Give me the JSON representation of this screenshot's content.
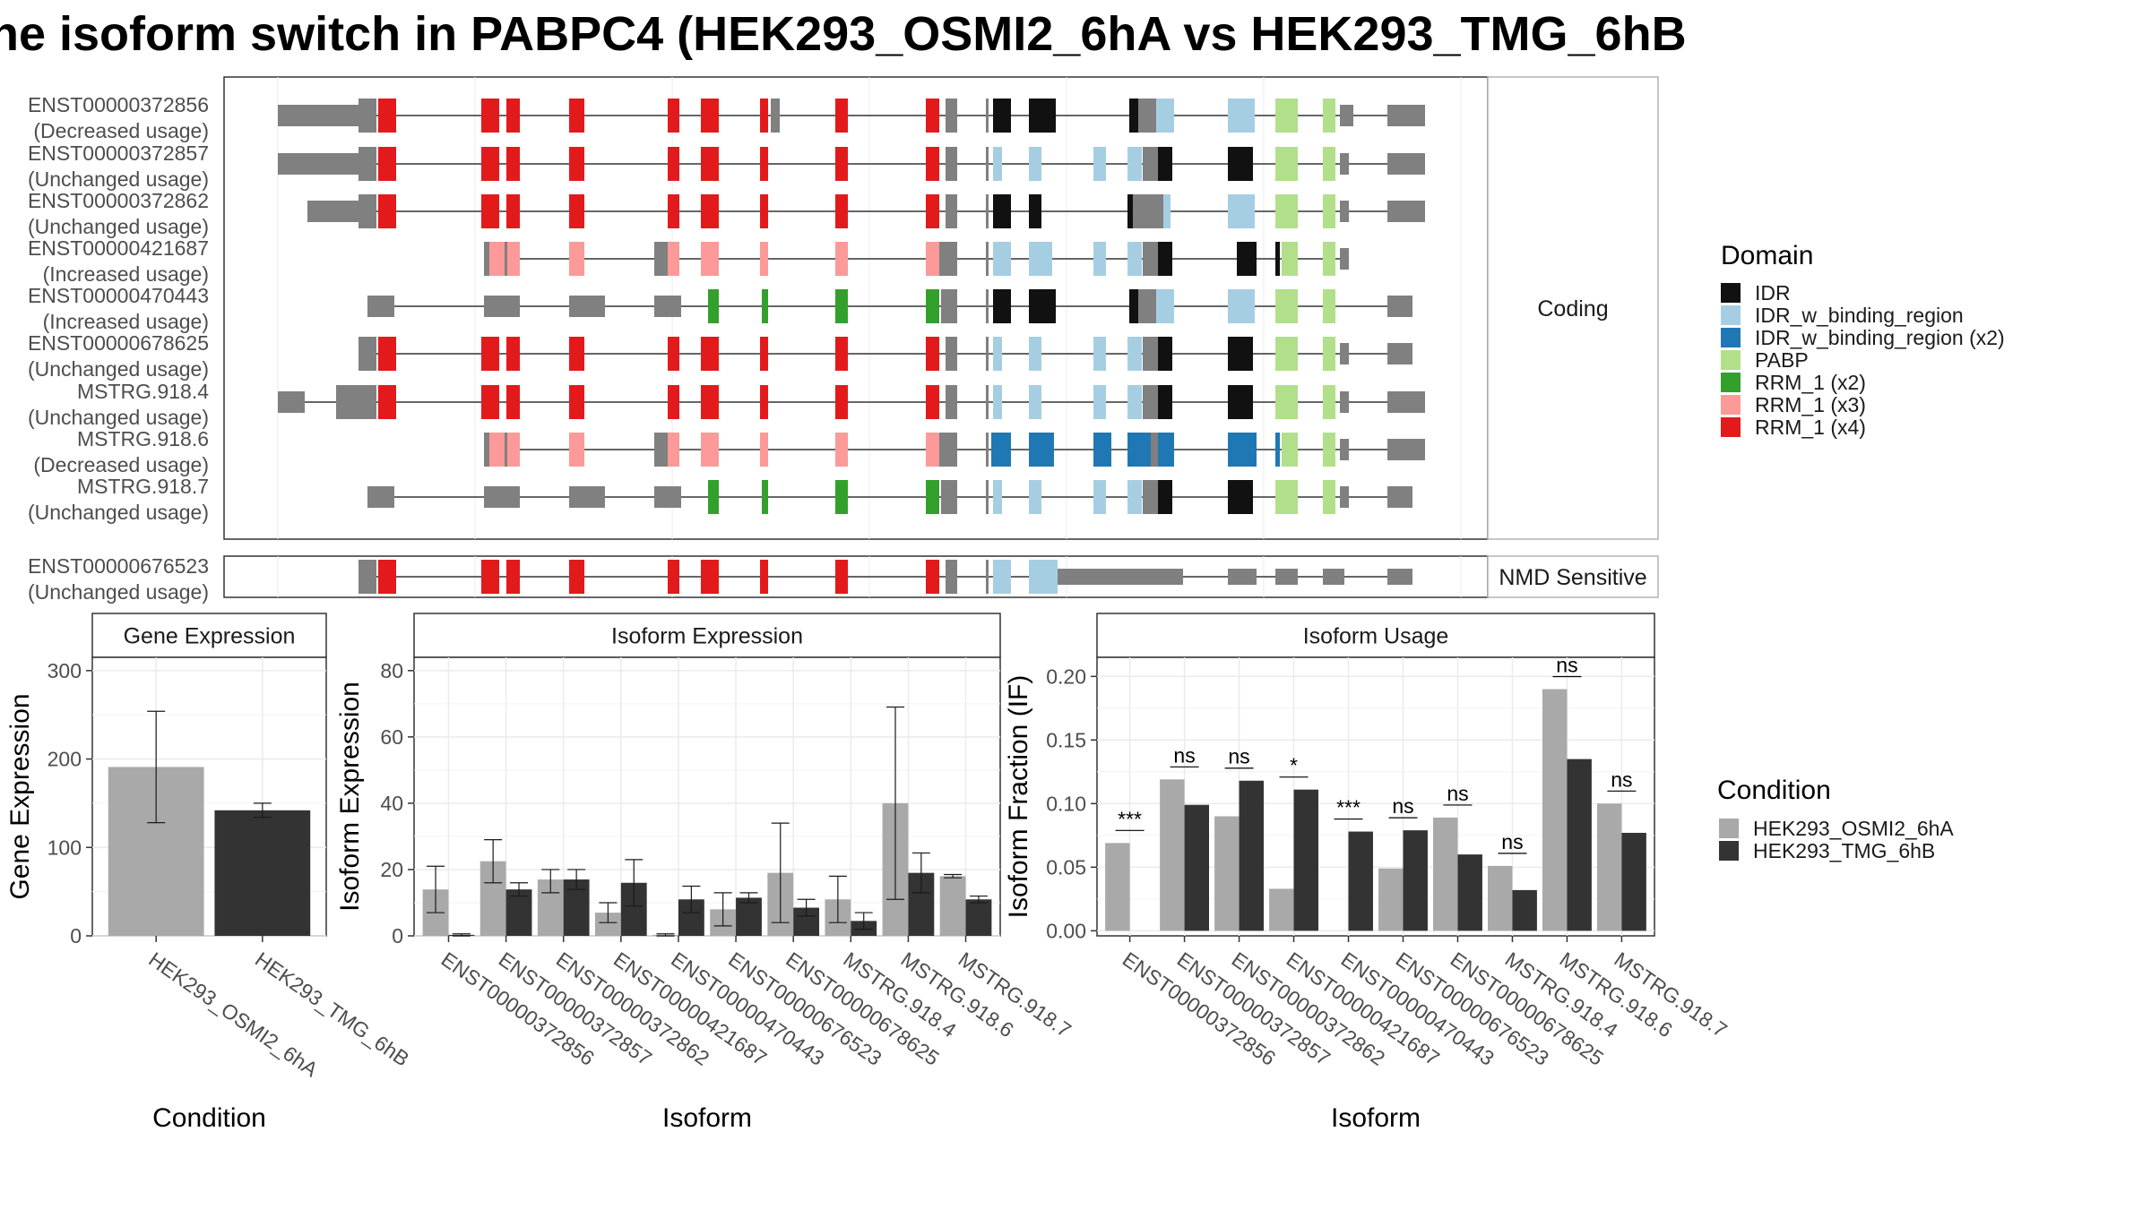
{
  "title": "he isoform switch in PABPC4 (HEK293_OSMI2_6hA vs HEK293_TMG_6hB",
  "colors": {
    "IDR": "#111111",
    "IDR_w_binding_region": "#a6cee3",
    "IDR_w_binding_region (x2)": "#1f78b4",
    "PABP": "#b2df8a",
    "RRM_1 (x2)": "#33a02c",
    "RRM_1 (x3)": "#fb9a99",
    "RRM_1 (x4)": "#e31a1c",
    "exon": "#808080",
    "condA": "#a9a9a9",
    "condB": "#333333"
  },
  "structure": {
    "coding_strip": "Coding",
    "nmd_strip": "NMD Sensitive",
    "coding_isoforms": [
      {
        "id": "ENST00000372856",
        "usage": "(Decreased usage)",
        "domains": [
          "RRM_1 (x4)",
          "IDR",
          "IDR_w_binding_region",
          "PABP"
        ]
      },
      {
        "id": "ENST00000372857",
        "usage": "(Unchanged usage)",
        "domains": [
          "RRM_1 (x4)",
          "IDR_w_binding_region",
          "IDR",
          "PABP"
        ]
      },
      {
        "id": "ENST00000372862",
        "usage": "(Unchanged usage)",
        "domains": [
          "RRM_1 (x4)",
          "IDR",
          "IDR_w_binding_region",
          "PABP"
        ]
      },
      {
        "id": "ENST00000421687",
        "usage": "(Increased usage)",
        "domains": [
          "RRM_1 (x3)",
          "IDR_w_binding_region",
          "IDR",
          "PABP"
        ]
      },
      {
        "id": "ENST00000470443",
        "usage": "(Increased usage)",
        "domains": [
          "RRM_1 (x2)",
          "IDR",
          "IDR_w_binding_region",
          "PABP"
        ]
      },
      {
        "id": "ENST00000678625",
        "usage": "(Unchanged usage)",
        "domains": [
          "RRM_1 (x4)",
          "IDR_w_binding_region",
          "IDR",
          "PABP"
        ]
      },
      {
        "id": "MSTRG.918.4",
        "usage": "(Unchanged usage)",
        "domains": [
          "RRM_1 (x4)",
          "IDR_w_binding_region",
          "IDR",
          "PABP"
        ]
      },
      {
        "id": "MSTRG.918.6",
        "usage": "(Decreased usage)",
        "domains": [
          "RRM_1 (x3)",
          "IDR_w_binding_region (x2)",
          "PABP"
        ]
      },
      {
        "id": "MSTRG.918.7",
        "usage": "(Unchanged usage)",
        "domains": [
          "RRM_1 (x2)",
          "IDR_w_binding_region",
          "IDR",
          "PABP"
        ]
      }
    ],
    "nmd_isoforms": [
      {
        "id": "ENST00000676523",
        "usage": "(Unchanged usage)",
        "domains": [
          "RRM_1 (x4)",
          "IDR_w_binding_region"
        ]
      }
    ]
  },
  "domain_legend": {
    "title": "Domain",
    "items": [
      {
        "label": "IDR",
        "color": "#111111"
      },
      {
        "label": "IDR_w_binding_region",
        "color": "#a6cee3"
      },
      {
        "label": "IDR_w_binding_region (x2)",
        "color": "#1f78b4"
      },
      {
        "label": "PABP",
        "color": "#b2df8a"
      },
      {
        "label": "RRM_1 (x2)",
        "color": "#33a02c"
      },
      {
        "label": "RRM_1 (x3)",
        "color": "#fb9a99"
      },
      {
        "label": "RRM_1 (x4)",
        "color": "#e31a1c"
      }
    ]
  },
  "condition_legend": {
    "title": "Condition",
    "items": [
      {
        "label": "HEK293_OSMI2_6hA",
        "color": "#a9a9a9"
      },
      {
        "label": "HEK293_TMG_6hB",
        "color": "#333333"
      }
    ]
  },
  "chart_data": [
    {
      "type": "bar",
      "title": "Gene Expression",
      "xlabel": "Condition",
      "ylabel": "Gene Expression",
      "categories": [
        "HEK293_OSMI2_6hA",
        "HEK293_TMG_6hB"
      ],
      "values": [
        191,
        142
      ],
      "error_low": [
        128,
        134
      ],
      "error_high": [
        254,
        150
      ],
      "ylim": [
        0,
        315
      ],
      "yticks": [
        0,
        100,
        200,
        300
      ]
    },
    {
      "type": "bar",
      "title": "Isoform Expression",
      "xlabel": "Isoform",
      "ylabel": "Isoform Expression",
      "categories": [
        "ENST00000372856",
        "ENST00000372857",
        "ENST00000372862",
        "ENST00000421687",
        "ENST00000470443",
        "ENST00000676523",
        "ENST00000678625",
        "MSTRG.918.4",
        "MSTRG.918.6",
        "MSTRG.918.7"
      ],
      "series": [
        {
          "name": "HEK293_OSMI2_6hA",
          "values": [
            14,
            22.5,
            17,
            7,
            0.3,
            8,
            19,
            11,
            40,
            18
          ],
          "error_low": [
            7,
            16,
            13,
            4,
            0,
            3,
            4,
            4,
            11,
            17.5
          ],
          "error_high": [
            21,
            29,
            20,
            10,
            0.6,
            13,
            34,
            18,
            69,
            18.5
          ]
        },
        {
          "name": "HEK293_TMG_6hB",
          "values": [
            0.3,
            14,
            17,
            16,
            11,
            11.5,
            8.5,
            4.5,
            19,
            11
          ],
          "error_low": [
            0,
            12,
            14,
            9,
            7,
            10,
            6,
            2,
            13,
            10
          ],
          "error_high": [
            0.6,
            16,
            20,
            23,
            15,
            13,
            11,
            7,
            25,
            12
          ]
        }
      ],
      "ylim": [
        0,
        84
      ],
      "yticks": [
        0,
        20,
        40,
        60,
        80
      ]
    },
    {
      "type": "bar",
      "title": "Isoform Usage",
      "xlabel": "Isoform",
      "ylabel": "Isoform Fraction (IF)",
      "categories": [
        "ENST00000372856",
        "ENST00000372857",
        "ENST00000372862",
        "ENST00000421687",
        "ENST00000470443",
        "ENST00000676523",
        "ENST00000678625",
        "MSTRG.918.4",
        "MSTRG.918.6",
        "MSTRG.918.7"
      ],
      "series": [
        {
          "name": "HEK293_OSMI2_6hA",
          "values": [
            0.069,
            0.119,
            0.09,
            0.033,
            0.0,
            0.049,
            0.089,
            0.051,
            0.19,
            0.1
          ]
        },
        {
          "name": "HEK293_TMG_6hB",
          "values": [
            0.0,
            0.099,
            0.118,
            0.111,
            0.078,
            0.079,
            0.06,
            0.032,
            0.135,
            0.077
          ]
        }
      ],
      "significance": [
        "***",
        "ns",
        "ns",
        "*",
        "***",
        "ns",
        "ns",
        "ns",
        "ns",
        "ns"
      ],
      "ylim": [
        -0.004,
        0.215
      ],
      "yticks": [
        0.0,
        0.05,
        0.1,
        0.15,
        0.2
      ],
      "ytick_labels": [
        "0.00",
        "0.05",
        "0.10",
        "0.15",
        "0.20"
      ]
    }
  ]
}
